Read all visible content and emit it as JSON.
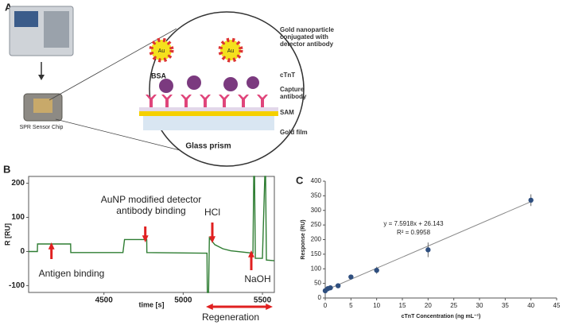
{
  "panel_a": {
    "label": "A",
    "au": [
      "Au",
      "Au"
    ],
    "gold_np": [
      "Gold nanoparticle",
      "conjugated with",
      "detector antibody"
    ],
    "ctnt": "cTnT",
    "capture": [
      "Capture",
      "antibody"
    ],
    "sam": "SAM",
    "gold_film": "Gold film",
    "bsa": "BSA",
    "glass": "Glass prism",
    "chip": "SPR Sensor Chip"
  },
  "chart_data": [
    {
      "type": "line",
      "panel": "B",
      "ylabel": "R [RU]",
      "xlabel": "time [s]",
      "xlim": [
        4025,
        5575
      ],
      "xticks": [
        4500,
        5000,
        5500
      ],
      "ylim": [
        -120,
        220
      ],
      "yticks": [
        -100,
        0,
        100,
        200
      ],
      "x": [
        4025,
        4080,
        4081,
        4290,
        4291,
        4620,
        4630,
        4770,
        4771,
        5150,
        5152,
        5160,
        5165,
        5200,
        5250,
        5300,
        5440,
        5445,
        5450,
        5455,
        5500,
        5515,
        5520,
        5525,
        5575
      ],
      "series": [
        {
          "name": "R",
          "color": "#2e7d32",
          "values": [
            0,
            0,
            22,
            22,
            -3,
            -3,
            35,
            35,
            -3,
            -5,
            -120,
            -120,
            40,
            20,
            8,
            2,
            -5,
            220,
            220,
            -20,
            -20,
            220,
            220,
            -25,
            -27
          ]
        }
      ],
      "annotations": [
        "AuNP modified detector",
        "antibody binding",
        "HCl",
        "Antigen binding",
        "NaOH",
        "Regeneration"
      ]
    },
    {
      "type": "scatter",
      "panel": "C",
      "ylabel": "Response (RU)",
      "xlabel": "cTnT Concentration (ng mL⁻¹)",
      "xlim": [
        0,
        45
      ],
      "xticks": [
        0,
        5,
        10,
        15,
        20,
        25,
        30,
        35,
        40,
        45
      ],
      "ylim": [
        0,
        400
      ],
      "yticks": [
        0,
        50,
        100,
        150,
        200,
        250,
        300,
        350,
        400
      ],
      "series": [
        {
          "name": "cTnT",
          "color": "#2f4f7f",
          "x": [
            0,
            0.5,
            1,
            2.5,
            5,
            10,
            20,
            40
          ],
          "values": [
            25,
            32,
            35,
            42,
            72,
            95,
            165,
            335
          ],
          "errors": [
            3,
            5,
            4,
            5,
            8,
            12,
            25,
            20
          ]
        }
      ],
      "fit": {
        "slope": 7.5918,
        "intercept": 26.143
      },
      "annotations": [
        "y = 7.5918x + 26.143",
        "R² = 0.9958"
      ]
    }
  ]
}
